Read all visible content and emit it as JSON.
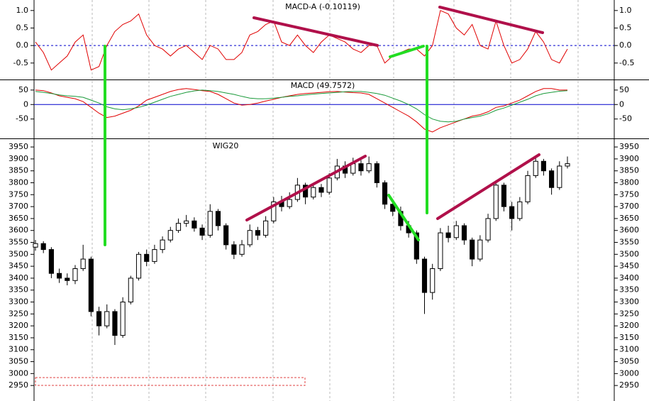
{
  "chart_data": [
    {
      "type": "line",
      "title": "MACD-A (-0.10119)",
      "categories": [
        null,
        null,
        null,
        null,
        null,
        null,
        null,
        null,
        null,
        null,
        null,
        null,
        null,
        null,
        null,
        null,
        null,
        null,
        null,
        null,
        null,
        null,
        null,
        null,
        null,
        null,
        null,
        null,
        null,
        null,
        null,
        null,
        null,
        null,
        null,
        null,
        null,
        null,
        null,
        null,
        null,
        null,
        null,
        null,
        null,
        null,
        null,
        null,
        null,
        null,
        null,
        null,
        null,
        null,
        null,
        null,
        null,
        null,
        null,
        null,
        null,
        null,
        null,
        null,
        null,
        null,
        null,
        null
      ],
      "series": [
        {
          "color": "#e00000",
          "values": [
            0.1,
            -0.2,
            -0.7,
            -0.5,
            -0.3,
            0.1,
            0.3,
            -0.7,
            -0.6,
            0.0,
            0.4,
            0.6,
            0.7,
            0.9,
            0.3,
            0.0,
            -0.1,
            -0.3,
            -0.1,
            0.0,
            -0.2,
            -0.4,
            0.0,
            -0.1,
            -0.4,
            -0.4,
            -0.2,
            0.3,
            0.4,
            0.6,
            0.7,
            0.1,
            0.0,
            0.3,
            0.0,
            -0.2,
            0.1,
            0.3,
            0.2,
            0.1,
            -0.1,
            -0.2,
            0.0,
            0.0,
            -0.5,
            -0.3,
            -0.2,
            -0.1,
            -0.1,
            -0.3,
            0.0,
            1.0,
            0.9,
            0.5,
            0.3,
            0.6,
            0.0,
            -0.1,
            0.7,
            0.0,
            -0.5,
            -0.4,
            -0.1,
            0.4,
            0.1,
            -0.4,
            -0.5,
            -0.1
          ]
        }
      ],
      "ylim": [
        -0.97,
        1.3
      ],
      "yticks": [
        {
          "value": 1,
          "label": "1.0"
        },
        0.5,
        {
          "value": 0,
          "label": "0.0"
        },
        -0.5
      ],
      "zero_line": true,
      "zero_line_dashed": true,
      "zero_line_color": "#0000cc"
    },
    {
      "type": "line",
      "title": "MACD (49.7572)",
      "categories": [
        null,
        null,
        null,
        null,
        null,
        null,
        null,
        null,
        null,
        null,
        null,
        null,
        null,
        null,
        null,
        null,
        null,
        null,
        null,
        null,
        null,
        null,
        null,
        null,
        null,
        null,
        null,
        null,
        null,
        null,
        null,
        null,
        null,
        null,
        null,
        null,
        null,
        null,
        null,
        null,
        null,
        null,
        null,
        null,
        null,
        null,
        null,
        null,
        null,
        null,
        null,
        null,
        null,
        null,
        null,
        null,
        null,
        null,
        null,
        null,
        null,
        null,
        null,
        null,
        null,
        null,
        null,
        null
      ],
      "series": [
        {
          "color": "#e00000",
          "values": [
            50,
            48,
            40,
            30,
            25,
            20,
            10,
            -10,
            -30,
            -45,
            -40,
            -30,
            -20,
            -5,
            15,
            25,
            35,
            45,
            52,
            55,
            52,
            48,
            45,
            35,
            20,
            5,
            -2,
            0,
            5,
            12,
            18,
            25,
            30,
            35,
            38,
            40,
            42,
            44,
            45,
            43,
            41,
            40,
            35,
            20,
            5,
            -10,
            -25,
            -40,
            -60,
            -85,
            -95,
            -80,
            -70,
            -60,
            -50,
            -40,
            -35,
            -25,
            -10,
            -5,
            5,
            15,
            30,
            45,
            55,
            55,
            50,
            50
          ]
        },
        {
          "color": "#1a9a3a",
          "values": [
            45,
            42,
            38,
            33,
            30,
            28,
            25,
            15,
            5,
            -8,
            -15,
            -18,
            -15,
            -10,
            -2,
            8,
            18,
            28,
            35,
            42,
            47,
            50,
            48,
            45,
            40,
            35,
            28,
            22,
            20,
            20,
            22,
            25,
            28,
            30,
            33,
            36,
            38,
            40,
            42,
            44,
            45,
            45,
            42,
            38,
            32,
            22,
            12,
            0,
            -15,
            -35,
            -50,
            -58,
            -60,
            -58,
            -50,
            -45,
            -40,
            -32,
            -20,
            -12,
            -2,
            8,
            18,
            30,
            38,
            42,
            46,
            48
          ]
        }
      ],
      "ylim": [
        -117,
        84
      ],
      "yticks": [
        50,
        0,
        -50
      ],
      "zero_line": true,
      "zero_line_dashed": false,
      "zero_line_color": "#0000cc"
    },
    {
      "type": "candlestick",
      "title": "WIG20",
      "categories": [
        null,
        null,
        null,
        null,
        null,
        null,
        null,
        null,
        null,
        null,
        null,
        null,
        null,
        null,
        null,
        null,
        null,
        null,
        null,
        null,
        null,
        null,
        null,
        null,
        null,
        null,
        null,
        null,
        null,
        null,
        null,
        null,
        null,
        null,
        null,
        null,
        null,
        null,
        null,
        null,
        null,
        null,
        null,
        null,
        null,
        null,
        null,
        null,
        null,
        null,
        null,
        null,
        null,
        null,
        null,
        null,
        null,
        null,
        null,
        null,
        null,
        null,
        null,
        null,
        null,
        null,
        null,
        null
      ],
      "open": [
        3530,
        3545,
        3520,
        3420,
        3400,
        3390,
        3440,
        3480,
        3260,
        3200,
        3260,
        3160,
        3300,
        3400,
        3500,
        3470,
        3520,
        3560,
        3600,
        3630,
        3640,
        3610,
        3580,
        3680,
        3620,
        3540,
        3500,
        3540,
        3600,
        3580,
        3640,
        3720,
        3700,
        3730,
        3790,
        3740,
        3780,
        3760,
        3820,
        3870,
        3840,
        3880,
        3850,
        3880,
        3800,
        3710,
        3680,
        3620,
        3590,
        3480,
        3340,
        3440,
        3590,
        3570,
        3620,
        3560,
        3480,
        3560,
        3650,
        3790,
        3700,
        3650,
        3720,
        3830,
        3890,
        3850,
        3780,
        3870
      ],
      "high": [
        3560,
        3555,
        3530,
        3440,
        3420,
        3455,
        3540,
        3490,
        3280,
        3290,
        3270,
        3320,
        3410,
        3510,
        3520,
        3540,
        3575,
        3615,
        3650,
        3665,
        3655,
        3625,
        3710,
        3690,
        3630,
        3555,
        3560,
        3625,
        3615,
        3660,
        3740,
        3745,
        3760,
        3820,
        3800,
        3800,
        3795,
        3840,
        3900,
        3890,
        3905,
        3895,
        3910,
        3890,
        3810,
        3730,
        3700,
        3640,
        3600,
        3490,
        3460,
        3610,
        3620,
        3640,
        3630,
        3570,
        3580,
        3670,
        3810,
        3800,
        3720,
        3740,
        3850,
        3910,
        3900,
        3860,
        3890,
        3910
      ],
      "low": [
        3515,
        3505,
        3400,
        3380,
        3370,
        3375,
        3430,
        3240,
        3160,
        3190,
        3120,
        3150,
        3290,
        3390,
        3450,
        3460,
        3505,
        3550,
        3590,
        3615,
        3595,
        3560,
        3570,
        3600,
        3520,
        3480,
        3490,
        3530,
        3560,
        3570,
        3630,
        3680,
        3690,
        3720,
        3710,
        3730,
        3740,
        3750,
        3810,
        3820,
        3830,
        3830,
        3840,
        3780,
        3690,
        3660,
        3600,
        3570,
        3460,
        3250,
        3310,
        3430,
        3550,
        3560,
        3540,
        3450,
        3470,
        3550,
        3640,
        3680,
        3600,
        3640,
        3710,
        3820,
        3830,
        3750,
        3770,
        3860
      ],
      "close": [
        3545,
        3520,
        3420,
        3400,
        3390,
        3440,
        3480,
        3260,
        3200,
        3260,
        3160,
        3300,
        3400,
        3500,
        3470,
        3520,
        3560,
        3600,
        3630,
        3640,
        3610,
        3580,
        3680,
        3620,
        3540,
        3500,
        3540,
        3600,
        3580,
        3640,
        3720,
        3700,
        3730,
        3790,
        3740,
        3780,
        3760,
        3820,
        3870,
        3840,
        3880,
        3850,
        3880,
        3800,
        3710,
        3680,
        3620,
        3590,
        3480,
        3340,
        3440,
        3590,
        3570,
        3620,
        3560,
        3480,
        3560,
        3650,
        3790,
        3700,
        3650,
        3720,
        3830,
        3890,
        3850,
        3780,
        3870,
        3880
      ],
      "ylim": [
        2885,
        3983
      ],
      "yticks": [
        2950,
        3000,
        3050,
        3100,
        3150,
        3200,
        3250,
        3300,
        3350,
        3400,
        3450,
        3500,
        3550,
        3600,
        3650,
        3700,
        3750,
        3800,
        3850,
        3900,
        3950
      ]
    }
  ]
}
